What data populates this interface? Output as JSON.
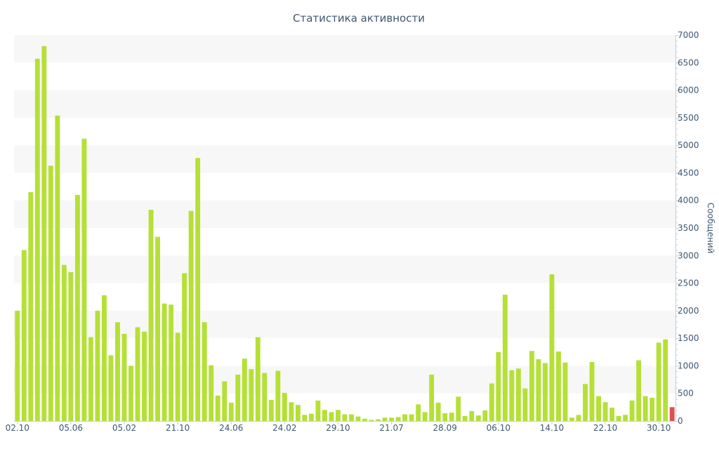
{
  "chart_data": {
    "type": "bar",
    "title": "Статистика активности",
    "ylabel": "Сообщений",
    "ylim": [
      0,
      7000
    ],
    "y_ticks": [
      0,
      500,
      1000,
      1500,
      2000,
      2500,
      3000,
      3500,
      4000,
      4500,
      5000,
      5500,
      6000,
      6500,
      7000
    ],
    "x_tick_labels": [
      {
        "label": "02.10",
        "index": 0
      },
      {
        "label": "05.06",
        "index": 8
      },
      {
        "label": "05.02",
        "index": 16
      },
      {
        "label": "21.10",
        "index": 24
      },
      {
        "label": "24.06",
        "index": 32
      },
      {
        "label": "24.02",
        "index": 40
      },
      {
        "label": "29.10",
        "index": 48
      },
      {
        "label": "21.07",
        "index": 56
      },
      {
        "label": "28.09",
        "index": 64
      },
      {
        "label": "06.10",
        "index": 72
      },
      {
        "label": "14.10",
        "index": 80
      },
      {
        "label": "22.10",
        "index": 88
      },
      {
        "label": "30.10",
        "index": 96
      }
    ],
    "grid": "alternating horizontal bands",
    "bar_color": "#b5e035",
    "highlight_color": "#d9534f",
    "values": [
      2000,
      3100,
      4150,
      6570,
      6800,
      4630,
      5540,
      2830,
      2700,
      4100,
      5120,
      1520,
      2000,
      2280,
      1190,
      1790,
      1580,
      1000,
      1700,
      1620,
      3830,
      3340,
      2130,
      2110,
      1600,
      2680,
      3810,
      4770,
      1790,
      1010,
      460,
      720,
      330,
      840,
      1130,
      940,
      1520,
      870,
      380,
      910,
      510,
      340,
      290,
      110,
      130,
      370,
      200,
      160,
      200,
      120,
      120,
      80,
      40,
      20,
      30,
      60,
      60,
      70,
      120,
      120,
      300,
      160,
      840,
      330,
      140,
      150,
      440,
      90,
      180,
      100,
      190,
      680,
      1250,
      2290,
      920,
      950,
      590,
      1270,
      1120,
      1050,
      2660,
      1260,
      1060,
      60,
      110,
      670,
      1070,
      450,
      340,
      240,
      90,
      110,
      370,
      1100,
      450,
      420,
      1420,
      1480,
      250
    ],
    "highlight_index": 98
  }
}
